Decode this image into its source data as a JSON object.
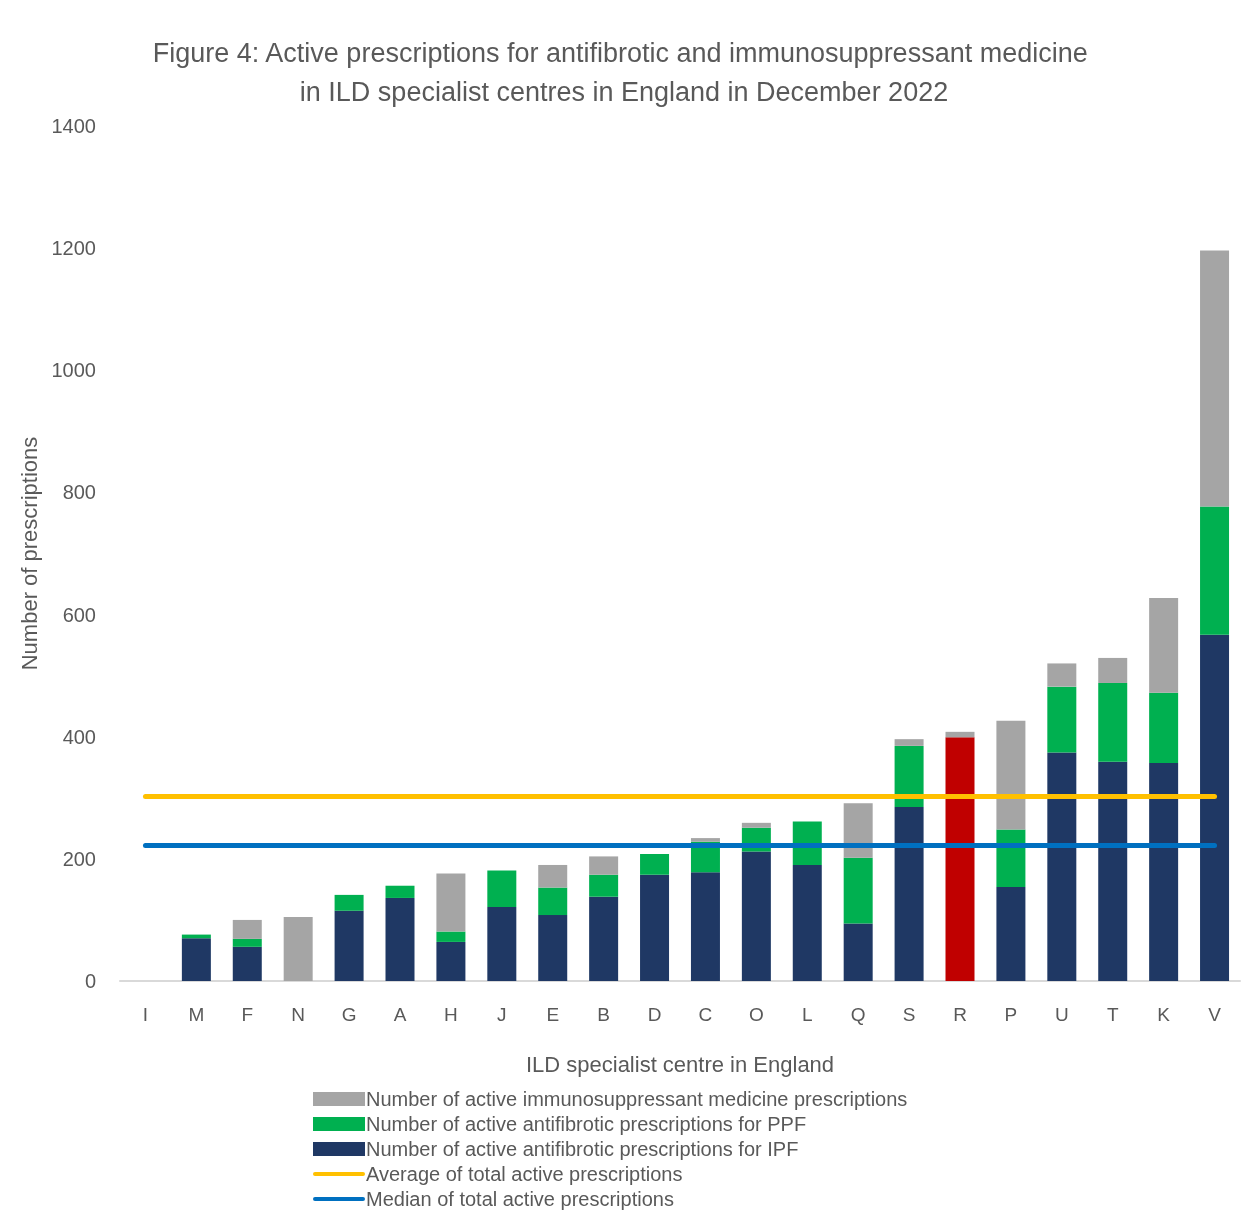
{
  "chart_data": {
    "type": "bar",
    "title": "Figure 4: Active prescriptions for antifibrotic and immunosuppressant medicine in ILD specialist centres in England in December 2022",
    "xlabel": "ILD specialist centre in England",
    "ylabel": "Number of prescriptions",
    "categories": [
      "I",
      "M",
      "F",
      "N",
      "G",
      "A",
      "H",
      "J",
      "E",
      "B",
      "D",
      "C",
      "O",
      "L",
      "Q",
      "S",
      "R",
      "P",
      "U",
      "T",
      "K",
      "V"
    ],
    "stacked": true,
    "series": [
      {
        "name": "Number of active antifibrotic prescriptions for IPF",
        "color": "#1f3864",
        "colors": [
          "#1f3864",
          "#1f3864",
          "#1f3864",
          "#1f3864",
          "#1f3864",
          "#1f3864",
          "#1f3864",
          "#1f3864",
          "#1f3864",
          "#1f3864",
          "#1f3864",
          "#1f3864",
          "#1f3864",
          "#1f3864",
          "#1f3864",
          "#1f3864",
          "#c00000",
          "#1f3864",
          "#1f3864",
          "#1f3864",
          "#1f3864",
          "#1f3864"
        ],
        "values": [
          0,
          70,
          56,
          0,
          115,
          136,
          64,
          121,
          108,
          138,
          174,
          178,
          212,
          190,
          94,
          285,
          399,
          154,
          374,
          359,
          357,
          567
        ]
      },
      {
        "name": "Number of active antifibrotic prescriptions for PPF",
        "color": "#00b050",
        "values": [
          0,
          6,
          13,
          0,
          26,
          20,
          17,
          60,
          45,
          36,
          34,
          50,
          39,
          71,
          108,
          100,
          0,
          94,
          108,
          129,
          115,
          210
        ]
      },
      {
        "name": "Number of active immunosuppressant medicine prescriptions",
        "color": "#a5a5a5",
        "values": [
          0,
          0,
          31,
          105,
          0,
          0,
          95,
          0,
          37,
          30,
          0,
          6,
          8,
          0,
          89,
          11,
          9,
          178,
          38,
          41,
          155,
          419
        ]
      }
    ],
    "ref_lines": [
      {
        "axis": "y",
        "value": 303,
        "label": "Average of total active prescriptions",
        "color": "#ffc000"
      },
      {
        "axis": "y",
        "value": 222,
        "label": "Median of total active prescriptions",
        "color": "#0070c0"
      }
    ],
    "ylim": [
      0,
      1400
    ],
    "yticks": [
      0,
      200,
      400,
      600,
      800,
      1000,
      1200,
      1400
    ],
    "grid": false,
    "legend": "bottom"
  }
}
